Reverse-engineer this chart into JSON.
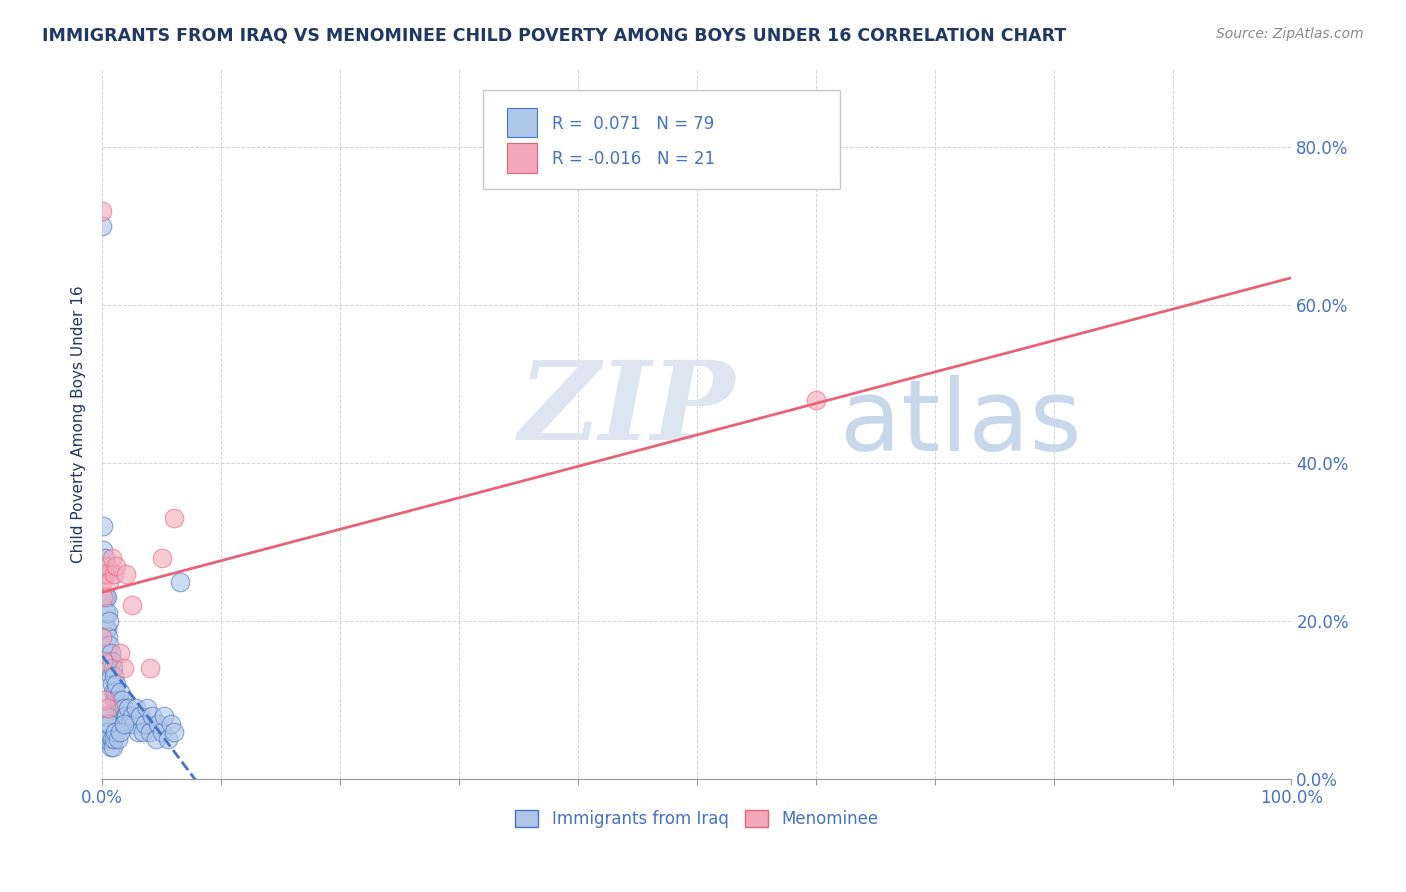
{
  "title": "IMMIGRANTS FROM IRAQ VS MENOMINEE CHILD POVERTY AMONG BOYS UNDER 16 CORRELATION CHART",
  "source": "Source: ZipAtlas.com",
  "ylabel": "Child Poverty Among Boys Under 16",
  "x_tick_labels": [
    "0.0%",
    "",
    "",
    "",
    "",
    "",
    "",
    "",
    "",
    "",
    "100.0%"
  ],
  "x_ticks": [
    0.0,
    0.1,
    0.2,
    0.3,
    0.4,
    0.5,
    0.6,
    0.7,
    0.8,
    0.9,
    1.0
  ],
  "y_tick_labels_right": [
    "0.0%",
    "20.0%",
    "40.0%",
    "60.0%",
    "80.0%"
  ],
  "y_ticks": [
    0.0,
    0.2,
    0.4,
    0.6,
    0.8
  ],
  "xlim": [
    0.0,
    1.0
  ],
  "ylim": [
    0.0,
    0.9
  ],
  "legend_labels": [
    "Immigrants from Iraq",
    "Menominee"
  ],
  "R_iraq": 0.071,
  "N_iraq": 79,
  "R_menominee": -0.016,
  "N_menominee": 21,
  "color_iraq": "#aec6e8",
  "color_menominee": "#f4a7b9",
  "line_color_iraq": "#4472c4",
  "line_color_menominee": "#e8637a",
  "title_color": "#1f3864",
  "axis_label_color": "#4472c4",
  "watermark_zip_color": "#dde6f0",
  "watermark_atlas_color": "#c8d8ea",
  "background_color": "#ffffff",
  "iraq_x": [
    0.0,
    0.001,
    0.001,
    0.001,
    0.002,
    0.002,
    0.002,
    0.003,
    0.003,
    0.003,
    0.003,
    0.004,
    0.004,
    0.004,
    0.005,
    0.005,
    0.005,
    0.006,
    0.006,
    0.006,
    0.007,
    0.007,
    0.008,
    0.008,
    0.009,
    0.009,
    0.01,
    0.01,
    0.011,
    0.012,
    0.012,
    0.013,
    0.014,
    0.015,
    0.015,
    0.016,
    0.017,
    0.018,
    0.019,
    0.02,
    0.022,
    0.022,
    0.023,
    0.025,
    0.027,
    0.028,
    0.03,
    0.032,
    0.034,
    0.036,
    0.038,
    0.04,
    0.042,
    0.045,
    0.047,
    0.05,
    0.052,
    0.055,
    0.058,
    0.06,
    0.001,
    0.002,
    0.002,
    0.003,
    0.003,
    0.004,
    0.004,
    0.005,
    0.005,
    0.006,
    0.007,
    0.008,
    0.009,
    0.01,
    0.011,
    0.013,
    0.015,
    0.018,
    0.065
  ],
  "iraq_y": [
    0.7,
    0.26,
    0.29,
    0.32,
    0.23,
    0.26,
    0.28,
    0.19,
    0.21,
    0.23,
    0.26,
    0.16,
    0.19,
    0.23,
    0.15,
    0.18,
    0.21,
    0.14,
    0.17,
    0.2,
    0.13,
    0.16,
    0.12,
    0.15,
    0.11,
    0.14,
    0.1,
    0.13,
    0.11,
    0.1,
    0.12,
    0.09,
    0.1,
    0.09,
    0.11,
    0.08,
    0.1,
    0.09,
    0.08,
    0.08,
    0.07,
    0.09,
    0.07,
    0.08,
    0.07,
    0.09,
    0.06,
    0.08,
    0.06,
    0.07,
    0.09,
    0.06,
    0.08,
    0.05,
    0.07,
    0.06,
    0.08,
    0.05,
    0.07,
    0.06,
    0.05,
    0.06,
    0.08,
    0.05,
    0.06,
    0.07,
    0.08,
    0.05,
    0.06,
    0.07,
    0.04,
    0.05,
    0.04,
    0.05,
    0.06,
    0.05,
    0.06,
    0.07,
    0.25
  ],
  "menominee_x": [
    0.0,
    0.0,
    0.0,
    0.001,
    0.001,
    0.002,
    0.003,
    0.004,
    0.005,
    0.006,
    0.008,
    0.01,
    0.012,
    0.015,
    0.018,
    0.02,
    0.025,
    0.04,
    0.05,
    0.06,
    0.6
  ],
  "menominee_y": [
    0.72,
    0.25,
    0.18,
    0.23,
    0.15,
    0.1,
    0.26,
    0.27,
    0.09,
    0.25,
    0.28,
    0.26,
    0.27,
    0.16,
    0.14,
    0.26,
    0.22,
    0.14,
    0.28,
    0.33,
    0.48
  ]
}
